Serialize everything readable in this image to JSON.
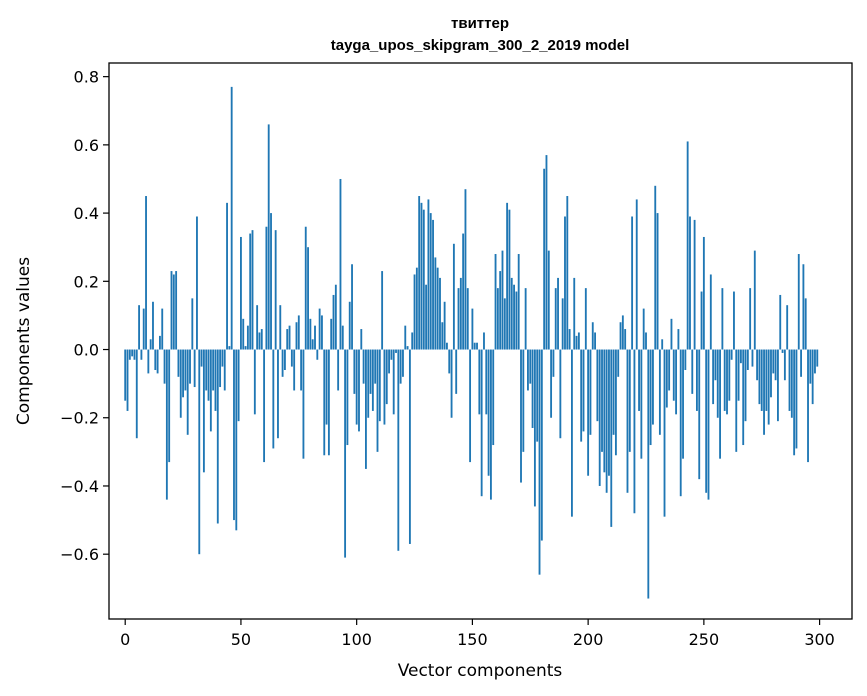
{
  "chart_data": {
    "type": "bar",
    "title": "твиттер",
    "subtitle": "tayga_upos_skipgram_300_2_2019 model",
    "xlabel": "Vector components",
    "ylabel": "Components values",
    "xlim": [
      -7,
      314
    ],
    "ylim": [
      -0.79,
      0.84
    ],
    "x_ticks": [
      0,
      50,
      100,
      150,
      200,
      250,
      300
    ],
    "x_tick_labels": [
      "0",
      "50",
      "100",
      "150",
      "200",
      "250",
      "300"
    ],
    "y_ticks": [
      -0.6,
      -0.4,
      -0.2,
      0.0,
      0.2,
      0.4,
      0.6,
      0.8
    ],
    "y_tick_labels": [
      "−0.6",
      "−0.4",
      "−0.2",
      "0.0",
      "0.2",
      "0.4",
      "0.6",
      "0.8"
    ],
    "bar_color": "#1f77b4",
    "values": [
      -0.15,
      -0.18,
      -0.03,
      -0.02,
      -0.03,
      -0.26,
      0.13,
      -0.03,
      0.12,
      0.45,
      -0.07,
      0.03,
      0.14,
      -0.06,
      -0.07,
      0.04,
      0.12,
      -0.1,
      -0.44,
      -0.33,
      0.23,
      0.22,
      0.23,
      -0.08,
      -0.2,
      -0.14,
      -0.12,
      -0.25,
      -0.1,
      0.15,
      -0.11,
      0.39,
      -0.6,
      -0.05,
      -0.36,
      -0.12,
      -0.15,
      -0.24,
      -0.12,
      -0.18,
      -0.51,
      -0.11,
      -0.05,
      -0.12,
      0.43,
      0.01,
      0.77,
      -0.5,
      -0.53,
      -0.21,
      0.33,
      0.09,
      0.01,
      0.07,
      0.34,
      0.35,
      -0.19,
      0.13,
      0.05,
      0.06,
      -0.33,
      0.36,
      0.66,
      0.4,
      -0.29,
      0.35,
      -0.26,
      0.13,
      -0.08,
      -0.06,
      0.06,
      0.07,
      -0.05,
      -0.12,
      0.08,
      0.1,
      -0.12,
      -0.32,
      0.36,
      0.3,
      0.09,
      0.03,
      0.07,
      -0.03,
      0.12,
      0.1,
      -0.31,
      -0.22,
      -0.31,
      0.09,
      0.16,
      0.19,
      -0.12,
      0.5,
      0.07,
      -0.61,
      -0.28,
      0.14,
      0.25,
      -0.13,
      -0.22,
      -0.24,
      0.06,
      -0.1,
      -0.35,
      -0.2,
      -0.13,
      -0.18,
      -0.1,
      -0.3,
      -0.21,
      0.23,
      -0.22,
      -0.16,
      -0.07,
      -0.03,
      -0.19,
      -0.01,
      -0.59,
      -0.1,
      -0.08,
      0.07,
      0.01,
      -0.57,
      0.05,
      0.22,
      0.24,
      0.45,
      0.43,
      0.41,
      0.19,
      0.44,
      0.4,
      0.38,
      0.27,
      0.24,
      0.21,
      0.08,
      0.14,
      0.02,
      -0.07,
      -0.2,
      0.31,
      -0.13,
      0.18,
      0.21,
      0.34,
      0.47,
      0.18,
      -0.33,
      0.12,
      0.02,
      0.02,
      -0.19,
      -0.43,
      0.05,
      -0.19,
      -0.37,
      -0.44,
      -0.28,
      0.28,
      0.18,
      0.23,
      0.29,
      0.15,
      0.43,
      0.41,
      0.21,
      0.19,
      0.17,
      0.28,
      -0.39,
      -0.3,
      0.18,
      -0.12,
      -0.1,
      -0.23,
      -0.46,
      -0.27,
      -0.66,
      -0.56,
      0.53,
      0.57,
      0.29,
      -0.2,
      -0.08,
      0.18,
      0.21,
      -0.26,
      0.15,
      0.39,
      0.45,
      0.06,
      -0.49,
      0.21,
      0.04,
      0.05,
      -0.27,
      -0.24,
      0.18,
      -0.37,
      -0.25,
      0.08,
      0.05,
      -0.21,
      -0.4,
      -0.3,
      -0.36,
      -0.42,
      -0.37,
      -0.52,
      -0.25,
      -0.31,
      -0.08,
      0.08,
      0.1,
      0.06,
      -0.42,
      -0.3,
      0.39,
      -0.48,
      0.44,
      -0.18,
      -0.32,
      0.12,
      0.05,
      -0.73,
      -0.28,
      -0.22,
      0.48,
      0.4,
      -0.25,
      0.03,
      -0.49,
      -0.17,
      -0.12,
      0.09,
      -0.15,
      -0.19,
      0.06,
      -0.43,
      -0.32,
      -0.06,
      0.61,
      0.39,
      -0.13,
      0.38,
      -0.18,
      -0.38,
      0.17,
      0.33,
      -0.42,
      -0.44,
      0.22,
      -0.16,
      -0.09,
      -0.2,
      -0.32,
      0.18,
      -0.18,
      -0.19,
      -0.15,
      -0.03,
      0.17,
      -0.3,
      -0.15,
      -0.04,
      -0.28,
      -0.21,
      -0.06,
      0.18,
      -0.05,
      0.29,
      -0.09,
      -0.16,
      -0.18,
      -0.25,
      -0.18,
      -0.22,
      -0.14,
      -0.07,
      -0.09,
      -0.21,
      0.16,
      -0.01,
      -0.09,
      0.13,
      -0.18,
      -0.2,
      -0.31,
      -0.29,
      0.28,
      -0.08,
      0.25,
      0.15,
      -0.33,
      -0.1,
      -0.16,
      -0.07,
      -0.05
    ]
  }
}
